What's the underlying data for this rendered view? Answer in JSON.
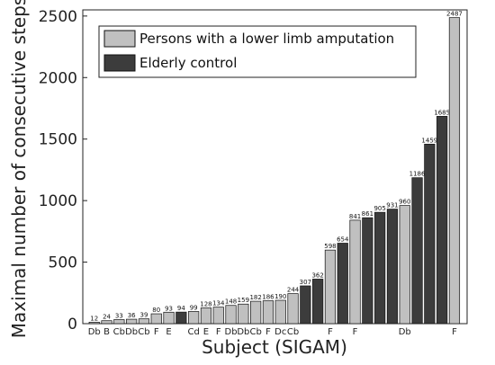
{
  "chart_data": {
    "type": "bar",
    "xlabel": "Subject (SIGAM)",
    "ylabel": "Maximal number of consecutive steps",
    "ylim": [
      0,
      2550
    ],
    "yticks": [
      0,
      500,
      1000,
      1500,
      2000,
      2500
    ],
    "grid": false,
    "legend_position": "top-left",
    "series": [
      {
        "name": "Persons with a lower limb amputation",
        "color": "#c0c0c0"
      },
      {
        "name": "Elderly control",
        "color": "#3c3c3c"
      }
    ],
    "bars": [
      {
        "value": 12,
        "label": "12",
        "category": "Db",
        "series": 0
      },
      {
        "value": 24,
        "label": "24",
        "category": "B",
        "series": 0
      },
      {
        "value": 33,
        "label": "33",
        "category": "Cb",
        "series": 0
      },
      {
        "value": 36,
        "label": "36",
        "category": "Db",
        "series": 0
      },
      {
        "value": 39,
        "label": "39",
        "category": "Cb",
        "series": 0
      },
      {
        "value": 80,
        "label": "80",
        "category": "F",
        "series": 0
      },
      {
        "value": 93,
        "label": "93",
        "category": "E",
        "series": 0
      },
      {
        "value": 94,
        "label": "94",
        "category": "",
        "series": 1
      },
      {
        "value": 99,
        "label": "99",
        "category": "Cd",
        "series": 0
      },
      {
        "value": 128,
        "label": "128",
        "category": "E",
        "series": 0
      },
      {
        "value": 134,
        "label": "134",
        "category": "F",
        "series": 0
      },
      {
        "value": 148,
        "label": "148",
        "category": "Db",
        "series": 0
      },
      {
        "value": 159,
        "label": "159",
        "category": "Db",
        "series": 0
      },
      {
        "value": 182,
        "label": "182",
        "category": "Cb",
        "series": 0
      },
      {
        "value": 186,
        "label": "186",
        "category": "F",
        "series": 0
      },
      {
        "value": 190,
        "label": "190",
        "category": "Dc",
        "series": 0
      },
      {
        "value": 244,
        "label": "244",
        "category": "Cb",
        "series": 0
      },
      {
        "value": 307,
        "label": "307",
        "category": "",
        "series": 1
      },
      {
        "value": 362,
        "label": "362",
        "category": "",
        "series": 1
      },
      {
        "value": 598,
        "label": "598",
        "category": "F",
        "series": 0
      },
      {
        "value": 654,
        "label": "654",
        "category": "",
        "series": 1
      },
      {
        "value": 841,
        "label": "841",
        "category": "F",
        "series": 0
      },
      {
        "value": 861,
        "label": "861",
        "category": "",
        "series": 1
      },
      {
        "value": 905,
        "label": "905",
        "category": "",
        "series": 1
      },
      {
        "value": 931,
        "label": "931",
        "category": "",
        "series": 1
      },
      {
        "value": 960,
        "label": "960",
        "category": "Db",
        "series": 0
      },
      {
        "value": 1186,
        "label": "1186",
        "category": "",
        "series": 1
      },
      {
        "value": 1459,
        "label": "1459",
        "category": "",
        "series": 1
      },
      {
        "value": 1685,
        "label": "1685",
        "category": "",
        "series": 1
      },
      {
        "value": 2487,
        "label": "2487",
        "category": "F",
        "series": 0
      }
    ]
  }
}
